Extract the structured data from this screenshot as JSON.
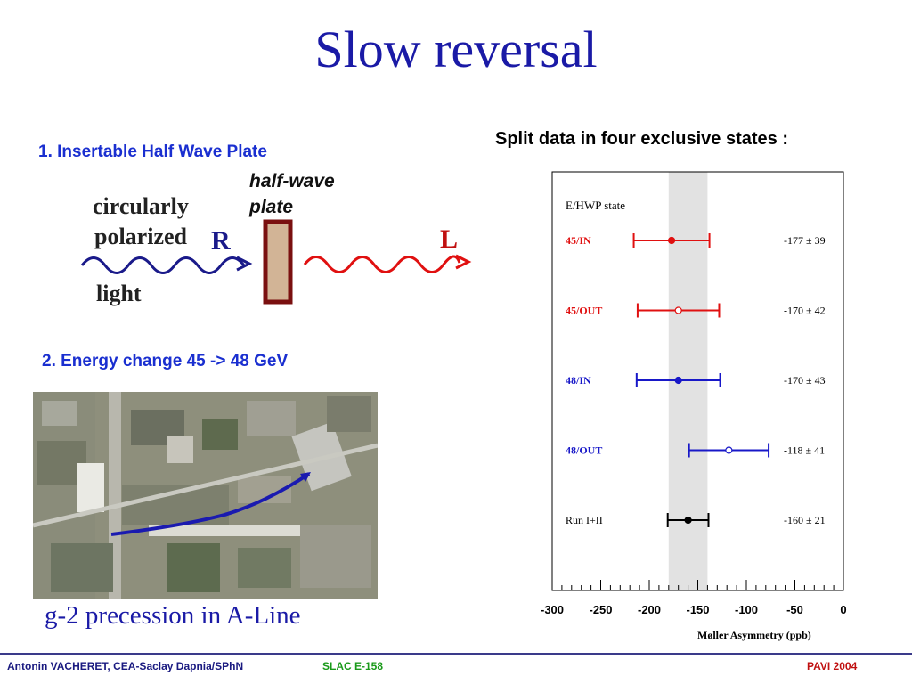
{
  "title": "Slow reversal",
  "section1": {
    "heading": "1. Insertable Half Wave Plate",
    "plate_label_line1": "half-wave",
    "plate_label_line2": "plate",
    "light_line1": "circularly",
    "light_line2": "polarized",
    "light_line3": "light",
    "in_label": "R",
    "out_label": "L"
  },
  "section2": {
    "heading": "2. Energy change  45 -> 48 GeV",
    "caption": "g-2  precession in A-Line"
  },
  "right_heading": "Split data in four exclusive states :",
  "chart_data": {
    "type": "scatter",
    "title": "E/HWP state",
    "xlabel": "Møller Asymmetry (ppb)",
    "xlim": [
      -300,
      0
    ],
    "x_ticks": [
      "-300",
      "-250",
      "-200",
      "-150",
      "-100",
      "-50",
      "0"
    ],
    "band": [
      -180,
      -140
    ],
    "points": [
      {
        "label": "45/IN",
        "value": -177,
        "error": 39,
        "value_text": "-177 ± 39",
        "color": "#e01010",
        "filled": true
      },
      {
        "label": "45/OUT",
        "value": -170,
        "error": 42,
        "value_text": "-170 ± 42",
        "color": "#e01010",
        "filled": false
      },
      {
        "label": "48/IN",
        "value": -170,
        "error": 43,
        "value_text": "-170 ± 43",
        "color": "#1818c8",
        "filled": true
      },
      {
        "label": "48/OUT",
        "value": -118,
        "error": 41,
        "value_text": "-118 ± 41",
        "color": "#1818c8",
        "filled": false
      },
      {
        "label": "Run I+II",
        "value": -160,
        "error": 21,
        "value_text": "-160 ± 21",
        "color": "#000000",
        "filled": true
      }
    ]
  },
  "footer": {
    "left": "Antonin VACHERET,  CEA-Saclay  Dapnia/SPhN",
    "mid": "SLAC E-158",
    "right": "PAVI 2004"
  }
}
